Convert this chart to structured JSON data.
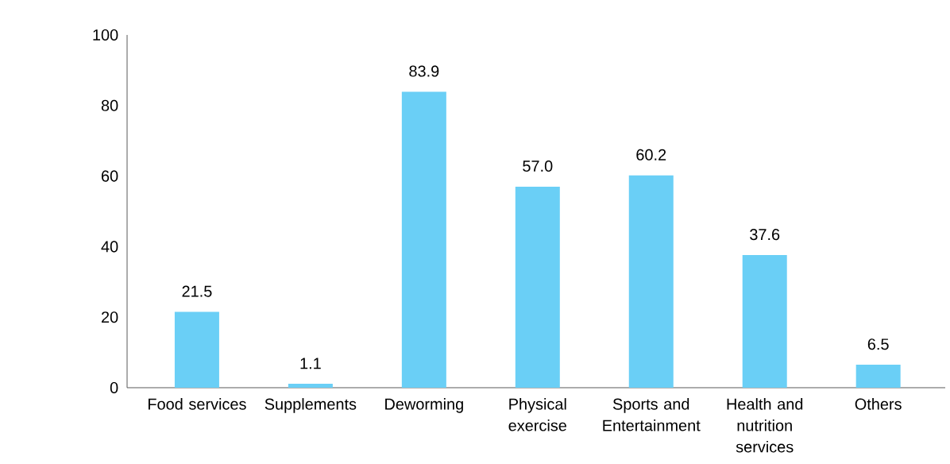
{
  "chart_data": {
    "type": "bar",
    "categories": [
      "Food services",
      "Supplements",
      "Deworming",
      "Physical exercise",
      "Sports and Entertainment",
      "Health and nutrition services",
      "Others"
    ],
    "values": [
      21.5,
      1.1,
      83.9,
      57.0,
      60.2,
      37.6,
      6.5
    ],
    "color": "#6acff6",
    "ylim": [
      0,
      100
    ],
    "yticks": [
      0,
      20,
      40,
      60,
      80,
      100
    ],
    "value_labels": [
      "21.5",
      "1.1",
      "83.9",
      "57.0",
      "60.2",
      "37.6",
      "6.5"
    ],
    "grid": false
  }
}
